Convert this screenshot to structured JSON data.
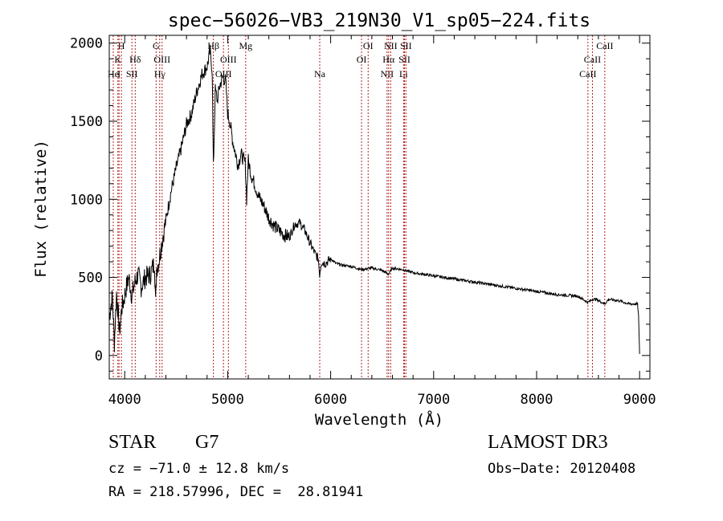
{
  "chart_data": {
    "type": "line",
    "title": "spec−56026−VB3_219N30_V1_sp05−224.fits",
    "xlabel": "Wavelength (Å)",
    "ylabel": "Flux (relative)",
    "xlim": [
      3850,
      9100
    ],
    "ylim": [
      -150,
      2050
    ],
    "xticks": [
      4000,
      5000,
      6000,
      7000,
      8000,
      9000
    ],
    "yticks": [
      0,
      500,
      1000,
      1500,
      2000
    ],
    "series": [
      {
        "name": "flux",
        "x": [
          3850,
          3880,
          3900,
          3920,
          3950,
          3970,
          3990,
          4010,
          4040,
          4070,
          4100,
          4130,
          4160,
          4200,
          4250,
          4290,
          4300,
          4310,
          4330,
          4360,
          4400,
          4450,
          4500,
          4550,
          4600,
          4650,
          4700,
          4750,
          4800,
          4830,
          4850,
          4861,
          4880,
          4900,
          4920,
          4950,
          4980,
          5000,
          5020,
          5050,
          5080,
          5100,
          5130,
          5170,
          5184,
          5200,
          5230,
          5260,
          5300,
          5350,
          5400,
          5450,
          5500,
          5550,
          5600,
          5650,
          5700,
          5750,
          5800,
          5850,
          5880,
          5893,
          5910,
          5950,
          6000,
          6050,
          6100,
          6200,
          6300,
          6400,
          6500,
          6563,
          6600,
          6700,
          6800,
          7000,
          7200,
          7400,
          7600,
          7800,
          8000,
          8200,
          8400,
          8498,
          8542,
          8580,
          8662,
          8700,
          8800,
          8900,
          8980,
          8990,
          9000
        ],
        "y": [
          250,
          380,
          80,
          400,
          150,
          300,
          350,
          420,
          500,
          380,
          470,
          520,
          440,
          500,
          520,
          600,
          330,
          560,
          600,
          720,
          870,
          1050,
          1200,
          1330,
          1480,
          1550,
          1690,
          1800,
          1850,
          1950,
          1820,
          1200,
          1700,
          1630,
          1720,
          1780,
          1760,
          1550,
          1500,
          1370,
          1280,
          1220,
          1290,
          1230,
          1000,
          1250,
          1150,
          1100,
          1020,
          960,
          880,
          830,
          800,
          770,
          760,
          840,
          850,
          800,
          720,
          650,
          620,
          520,
          600,
          590,
          620,
          590,
          580,
          570,
          550,
          560,
          545,
          520,
          560,
          550,
          530,
          510,
          490,
          470,
          450,
          430,
          410,
          390,
          380,
          340,
          360,
          360,
          330,
          360,
          350,
          330,
          330,
          250,
          10
        ]
      }
    ],
    "lines": [
      {
        "label": "K",
        "wavelength": 3934,
        "row": 2
      },
      {
        "label": "H",
        "wavelength": 3968,
        "row": 1
      },
      {
        "label": "He",
        "wavelength": 3889,
        "row": 3
      },
      {
        "label": "I",
        "wavelength": 3945,
        "row": 3
      },
      {
        "label": "SII",
        "wavelength": 4070,
        "row": 3
      },
      {
        "label": "Hδ",
        "wavelength": 4102,
        "row": 2
      },
      {
        "label": "G",
        "wavelength": 4305,
        "row": 1
      },
      {
        "label": "Hγ",
        "wavelength": 4340,
        "row": 3
      },
      {
        "label": "OIII",
        "wavelength": 4363,
        "row": 2
      },
      {
        "label": "Hβ",
        "wavelength": 4861,
        "row": 1
      },
      {
        "label": "OIII",
        "wavelength": 4959,
        "row": 3
      },
      {
        "label": "OIII",
        "wavelength": 5007,
        "row": 2
      },
      {
        "label": "Mg",
        "wavelength": 5175,
        "row": 1
      },
      {
        "label": "Na",
        "wavelength": 5894,
        "row": 3
      },
      {
        "label": "OI",
        "wavelength": 6300,
        "row": 2
      },
      {
        "label": "OI",
        "wavelength": 6364,
        "row": 1
      },
      {
        "label": "NII",
        "wavelength": 6548,
        "row": 3
      },
      {
        "label": "NII",
        "wavelength": 6583,
        "row": 1
      },
      {
        "label": "Hα",
        "wavelength": 6563,
        "row": 2
      },
      {
        "label": "SII",
        "wavelength": 6717,
        "row": 2
      },
      {
        "label": "Li",
        "wavelength": 6708,
        "row": 3
      },
      {
        "label": "SII",
        "wavelength": 6731,
        "row": 1
      },
      {
        "label": "CaII",
        "wavelength": 8498,
        "row": 3
      },
      {
        "label": "CaII",
        "wavelength": 8542,
        "row": 2
      },
      {
        "label": "CaII",
        "wavelength": 8662,
        "row": 1
      }
    ]
  },
  "info": {
    "class": "STAR",
    "subclass": "G7",
    "survey": "LAMOST DR3",
    "cz": "cz = −71.0 ± 12.8 km/s",
    "obs_date": "Obs−Date: 20120408",
    "coords": "RA = 218.57996, DEC =  28.81941"
  },
  "colors": {
    "line_marker": "#b22222",
    "flux": "#000000"
  }
}
